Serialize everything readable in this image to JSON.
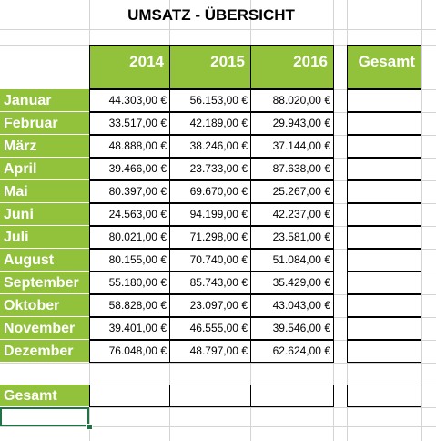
{
  "sheet": {
    "title": "UMSATZ - ÜBERSICHT",
    "years": [
      "2014",
      "2015",
      "2016"
    ],
    "gesamt_header": "Gesamt",
    "total_row_label": "Gesamt",
    "rows": [
      {
        "month": "Januar",
        "v2014": "44.303,00 €",
        "v2015": "56.153,00 €",
        "v2016": "88.020,00 €"
      },
      {
        "month": "Februar",
        "v2014": "33.517,00 €",
        "v2015": "42.189,00 €",
        "v2016": "29.943,00 €"
      },
      {
        "month": "März",
        "v2014": "48.888,00 €",
        "v2015": "38.246,00 €",
        "v2016": "37.144,00 €"
      },
      {
        "month": "April",
        "v2014": "39.466,00 €",
        "v2015": "23.733,00 €",
        "v2016": "87.638,00 €"
      },
      {
        "month": "Mai",
        "v2014": "80.397,00 €",
        "v2015": "69.670,00 €",
        "v2016": "25.267,00 €"
      },
      {
        "month": "Juni",
        "v2014": "24.563,00 €",
        "v2015": "94.199,00 €",
        "v2016": "42.237,00 €"
      },
      {
        "month": "Juli",
        "v2014": "80.021,00 €",
        "v2015": "71.298,00 €",
        "v2016": "23.581,00 €"
      },
      {
        "month": "August",
        "v2014": "80.155,00 €",
        "v2015": "70.740,00 €",
        "v2016": "51.084,00 €"
      },
      {
        "month": "September",
        "v2014": "55.180,00 €",
        "v2015": "85.743,00 €",
        "v2016": "35.429,00 €"
      },
      {
        "month": "Oktober",
        "v2014": "58.828,00 €",
        "v2015": "23.097,00 €",
        "v2016": "43.043,00 €"
      },
      {
        "month": "November",
        "v2014": "39.401,00 €",
        "v2015": "46.555,00 €",
        "v2016": "39.546,00 €"
      },
      {
        "month": "Dezember",
        "v2014": "76.048,00 €",
        "v2015": "48.797,00 €",
        "v2016": "62.624,00 €"
      }
    ]
  },
  "colors": {
    "accent": "#92c13b",
    "selection": "#217346",
    "gridline": "#d4d4d4"
  }
}
